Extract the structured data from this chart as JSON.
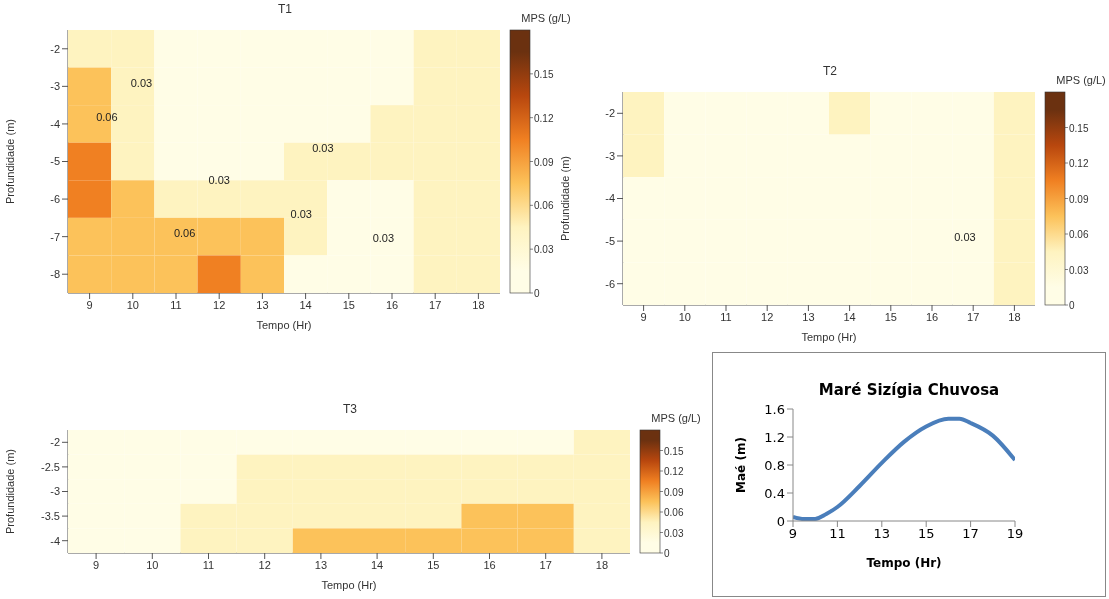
{
  "chart_data": [
    {
      "type": "heatmap",
      "title": "T1",
      "xlabel": "Tempo (Hr)",
      "ylabel": "Profundidade (m)",
      "clabel": "MPS (g/L)",
      "categories": [
        "9",
        "10",
        "11",
        "12",
        "13",
        "14",
        "15",
        "16",
        "17",
        "18"
      ],
      "y_categories": [
        "-2",
        "-3",
        "-4",
        "-5",
        "-6",
        "-7",
        "-8"
      ],
      "cells": [
        [
          0.045,
          0.045,
          0.015,
          0.015,
          0.015,
          0.015,
          0.015,
          0.015,
          0.045,
          0.045
        ],
        [
          0.075,
          0.045,
          0.015,
          0.015,
          0.015,
          0.015,
          0.015,
          0.015,
          0.045,
          0.045
        ],
        [
          0.075,
          0.045,
          0.015,
          0.015,
          0.015,
          0.015,
          0.015,
          0.045,
          0.045,
          0.045
        ],
        [
          0.105,
          0.045,
          0.015,
          0.015,
          0.015,
          0.045,
          0.045,
          0.045,
          0.045,
          0.045
        ],
        [
          0.105,
          0.075,
          0.045,
          0.045,
          0.045,
          0.045,
          0.015,
          0.015,
          0.045,
          0.045
        ],
        [
          0.075,
          0.075,
          0.075,
          0.075,
          0.075,
          0.045,
          0.015,
          0.015,
          0.045,
          0.045
        ],
        [
          0.075,
          0.075,
          0.075,
          0.105,
          0.075,
          0.015,
          0.015,
          0.015,
          0.045,
          0.045
        ]
      ],
      "clim": [
        0,
        0.18
      ],
      "cticks": [
        0,
        0.03,
        0.06,
        0.09,
        0.12,
        0.15
      ],
      "colors": [
        "#fffde6",
        "#fef3c0",
        "#fcc25a",
        "#f08022",
        "#b8470e",
        "#6b3110"
      ],
      "annotations": [
        "0.03",
        "0.06",
        "0.03",
        "0.03",
        "0.06",
        "0.03",
        "0.03"
      ]
    },
    {
      "type": "heatmap",
      "title": "T2",
      "xlabel": "Tempo (Hr)",
      "ylabel": "Profundidade (m)",
      "clabel": "MPS (g/L)",
      "categories": [
        "9",
        "10",
        "11",
        "12",
        "13",
        "14",
        "15",
        "16",
        "17",
        "18"
      ],
      "y_categories": [
        "-2",
        "-3",
        "-4",
        "-5",
        "-6"
      ],
      "cells": [
        [
          0.045,
          0.015,
          0.015,
          0.015,
          0.015,
          0.045,
          0.015,
          0.015,
          0.015,
          0.045
        ],
        [
          0.045,
          0.015,
          0.015,
          0.015,
          0.015,
          0.015,
          0.015,
          0.015,
          0.015,
          0.045
        ],
        [
          0.015,
          0.015,
          0.015,
          0.015,
          0.015,
          0.015,
          0.015,
          0.015,
          0.015,
          0.045
        ],
        [
          0.015,
          0.015,
          0.015,
          0.015,
          0.015,
          0.015,
          0.015,
          0.015,
          0.015,
          0.045
        ],
        [
          0.015,
          0.015,
          0.015,
          0.015,
          0.015,
          0.015,
          0.015,
          0.015,
          0.015,
          0.045
        ]
      ],
      "clim": [
        0,
        0.18
      ],
      "cticks": [
        0,
        0.03,
        0.06,
        0.09,
        0.12,
        0.15
      ],
      "colors": [
        "#fffde6",
        "#fef3c0",
        "#fcc25a",
        "#f08022",
        "#b8470e",
        "#6b3110"
      ],
      "annotations": [
        "0.03"
      ]
    },
    {
      "type": "heatmap",
      "title": "T3",
      "xlabel": "Tempo (Hr)",
      "ylabel": "Profundidade (m)",
      "clabel": "MPS (g/L)",
      "categories": [
        "9",
        "10",
        "11",
        "12",
        "13",
        "14",
        "15",
        "16",
        "17",
        "18"
      ],
      "y_categories": [
        "-2",
        "-2.5",
        "-3",
        "-3.5",
        "-4"
      ],
      "cells": [
        [
          0.015,
          0.015,
          0.015,
          0.015,
          0.015,
          0.015,
          0.015,
          0.015,
          0.015,
          0.045
        ],
        [
          0.015,
          0.015,
          0.015,
          0.045,
          0.045,
          0.045,
          0.045,
          0.045,
          0.045,
          0.045
        ],
        [
          0.015,
          0.015,
          0.015,
          0.045,
          0.045,
          0.045,
          0.045,
          0.045,
          0.045,
          0.045
        ],
        [
          0.015,
          0.015,
          0.045,
          0.045,
          0.045,
          0.045,
          0.045,
          0.075,
          0.075,
          0.045
        ],
        [
          0.015,
          0.015,
          0.045,
          0.045,
          0.075,
          0.075,
          0.075,
          0.075,
          0.075,
          0.045
        ]
      ],
      "clim": [
        0,
        0.18
      ],
      "cticks": [
        0,
        0.03,
        0.06,
        0.09,
        0.12,
        0.15
      ],
      "colors": [
        "#fffde6",
        "#fef3c0",
        "#fcc25a",
        "#f08022",
        "#b8470e",
        "#6b3110"
      ]
    },
    {
      "type": "line",
      "title": "Maré Sizígia Chuvosa",
      "xlabel": "Tempo (Hr)",
      "ylabel": "Maé (m)",
      "x": [
        9,
        9.5,
        10,
        10.5,
        11,
        12,
        13,
        14,
        15,
        16,
        16.5,
        17,
        18,
        19
      ],
      "values": [
        0.06,
        0.03,
        0.03,
        0.1,
        0.2,
        0.5,
        0.83,
        1.13,
        1.35,
        1.46,
        1.46,
        1.4,
        1.22,
        0.87
      ],
      "color": "#4a7ebb",
      "xlim": [
        9,
        19
      ],
      "xticks": [
        9,
        11,
        13,
        15,
        17,
        19
      ],
      "ylim": [
        0,
        1.6
      ],
      "yticks": [
        0,
        0.4,
        0.8,
        1.2,
        1.6
      ]
    }
  ]
}
